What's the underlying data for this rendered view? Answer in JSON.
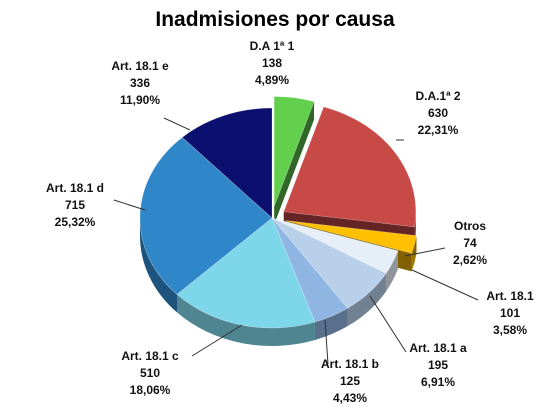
{
  "chart_data": {
    "type": "pie",
    "title": "Inadmisiones por causa",
    "legend": "none",
    "slices": [
      {
        "name": "D.A 1ª 1",
        "value": 138,
        "percent": "4,89%",
        "color": "#62d04d",
        "exploded": true
      },
      {
        "name": "D.A.1ª 2",
        "value": 630,
        "percent": "22,31%",
        "color": "#c84a47",
        "exploded": true
      },
      {
        "name": "Otros",
        "value": 74,
        "percent": "2,62%",
        "color": "#ffc000",
        "exploded": true
      },
      {
        "name": "Art. 18.1",
        "value": 101,
        "percent": "3,58%",
        "color": "#e6eef8",
        "exploded": false
      },
      {
        "name": "Art. 18.1 a",
        "value": 195,
        "percent": "6,91%",
        "color": "#b8d0ea",
        "exploded": false
      },
      {
        "name": "Art. 18.1 b",
        "value": 125,
        "percent": "4,43%",
        "color": "#8fb5e2",
        "exploded": false
      },
      {
        "name": "Art. 18.1 c",
        "value": 510,
        "percent": "18,06%",
        "color": "#7dd6ea",
        "exploded": false
      },
      {
        "name": "Art. 18.1 d",
        "value": 715,
        "percent": "25,32%",
        "color": "#2f86c8",
        "exploded": false
      },
      {
        "name": "Art. 18.1 e",
        "value": 336,
        "percent": "11,90%",
        "color": "#0b0f6e",
        "exploded": false
      }
    ]
  }
}
